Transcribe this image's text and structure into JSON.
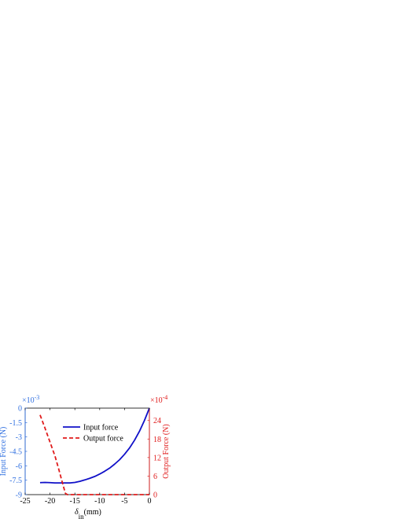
{
  "chart_data": {
    "type": "line",
    "xlabel": {
      "base": "δ",
      "sub": "in",
      "unit": "(mm)"
    },
    "xlim": [
      -25,
      0
    ],
    "x_ticks": [
      -25,
      -20,
      -15,
      -10,
      -5,
      0
    ],
    "left_axis": {
      "label": "Input Force (N)",
      "exponent": "×10",
      "exponent_power": "-3",
      "ylim": [
        -9,
        0
      ],
      "ticks": [
        0,
        -1.5,
        -3,
        -4.5,
        -6,
        -7.5,
        -9
      ],
      "tick_labels": [
        "0",
        "-1.5",
        "-3",
        "-4.5",
        "-6",
        "-7.5",
        "-9"
      ],
      "color": "#2F6FE0"
    },
    "right_axis": {
      "label": "Output Force (N)",
      "exponent": "×10",
      "exponent_power": "-4",
      "ylim": [
        0,
        28
      ],
      "ticks": [
        0,
        6,
        12,
        18,
        24
      ],
      "tick_labels": [
        "0",
        "6",
        "12",
        "18",
        "24"
      ],
      "color": "#E01B1B"
    },
    "series": [
      {
        "name": "Input force",
        "axis": "left",
        "color": "#1010C8",
        "style": "solid",
        "x": [
          -22,
          -21,
          -20,
          -19,
          -18,
          -17,
          -16,
          -15,
          -14,
          -13,
          -12,
          -11,
          -10,
          -9,
          -8,
          -7,
          -6,
          -5,
          -4,
          -3,
          -2,
          -1,
          0
        ],
        "y": [
          -7.75,
          -7.73,
          -7.75,
          -7.78,
          -7.78,
          -7.78,
          -7.78,
          -7.73,
          -7.62,
          -7.47,
          -7.3,
          -7.11,
          -6.86,
          -6.57,
          -6.24,
          -5.83,
          -5.37,
          -4.8,
          -4.15,
          -3.35,
          -2.41,
          -1.29,
          0
        ]
      },
      {
        "name": "Output force",
        "axis": "right",
        "color": "#E01B1B",
        "style": "dashed",
        "x": [
          -22,
          -21,
          -20,
          -19,
          -18.2,
          -17.5,
          -16.9,
          -16.5,
          -15,
          -10,
          -5,
          0
        ],
        "y": [
          25.8,
          21.5,
          17.0,
          12.5,
          8.0,
          3.8,
          0.4,
          0,
          0,
          0,
          0,
          0
        ]
      }
    ],
    "legend": {
      "position": "top-right-inside",
      "box": false
    },
    "grid": false
  }
}
